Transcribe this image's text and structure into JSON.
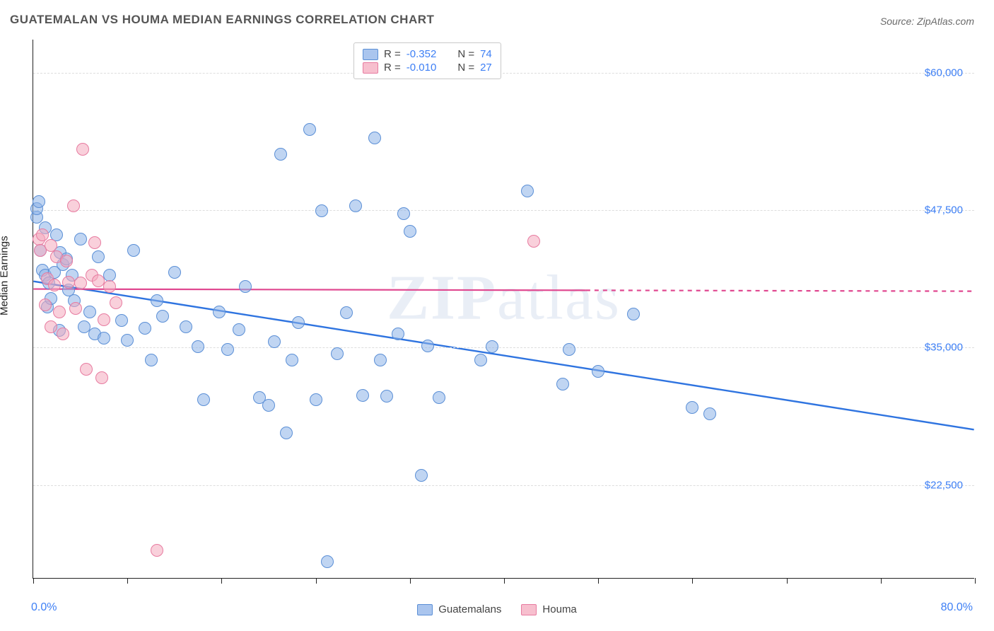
{
  "title": "GUATEMALAN VS HOUMA MEDIAN EARNINGS CORRELATION CHART",
  "source_label": "Source: ZipAtlas.com",
  "ylabel": "Median Earnings",
  "watermark": {
    "prefix": "ZIP",
    "suffix": "atlas"
  },
  "chart": {
    "type": "scatter",
    "background_color": "#ffffff",
    "grid_color": "#dddddd",
    "axis_color": "#222222",
    "tick_label_color": "#3d7ff5",
    "title_fontsize": 17,
    "label_fontsize": 15,
    "marker_radius": 9,
    "marker_opacity": 0.55,
    "xlim": [
      0,
      80
    ],
    "ylim": [
      14000,
      63000
    ],
    "x_tick_positions": [
      0,
      8,
      16,
      24,
      32,
      40,
      48,
      56,
      64,
      72,
      80
    ],
    "x_range_labels": {
      "left": "0.0%",
      "right": "80.0%"
    },
    "y_gridlines": [
      22500,
      35000,
      47500,
      60000
    ],
    "y_tick_labels": [
      "$22,500",
      "$35,000",
      "$47,500",
      "$60,000"
    ],
    "series": [
      {
        "name": "Guatemalans",
        "key": "A",
        "fill_color": "#8db2e8",
        "border_color": "#5b8fd6",
        "correlation": {
          "R": "-0.352",
          "N": "74"
        },
        "trend": {
          "x1": 0,
          "y1": 41000,
          "x2": 80,
          "y2": 27500,
          "stroke": "#2f74e0",
          "stroke_width": 2.4,
          "dash_after_x": null
        },
        "points": [
          [
            0.3,
            46800
          ],
          [
            0.3,
            47600
          ],
          [
            0.5,
            48200
          ],
          [
            0.6,
            43800
          ],
          [
            0.8,
            42000
          ],
          [
            1.0,
            41500
          ],
          [
            1.0,
            45800
          ],
          [
            1.2,
            38600
          ],
          [
            1.3,
            40800
          ],
          [
            1.5,
            39400
          ],
          [
            1.8,
            41800
          ],
          [
            2.0,
            45200
          ],
          [
            2.2,
            36500
          ],
          [
            2.3,
            43600
          ],
          [
            2.5,
            42500
          ],
          [
            2.8,
            43000
          ],
          [
            3.0,
            40200
          ],
          [
            3.3,
            41500
          ],
          [
            3.5,
            39200
          ],
          [
            4.0,
            44800
          ],
          [
            4.3,
            36800
          ],
          [
            4.8,
            38200
          ],
          [
            5.2,
            36200
          ],
          [
            5.5,
            43200
          ],
          [
            6.0,
            35800
          ],
          [
            6.5,
            41500
          ],
          [
            7.5,
            37400
          ],
          [
            8.0,
            35600
          ],
          [
            8.5,
            43800
          ],
          [
            9.5,
            36700
          ],
          [
            10.0,
            33800
          ],
          [
            10.5,
            39200
          ],
          [
            11.0,
            37800
          ],
          [
            12.0,
            41800
          ],
          [
            13.0,
            36800
          ],
          [
            14.0,
            35000
          ],
          [
            14.5,
            30200
          ],
          [
            15.8,
            38200
          ],
          [
            16.5,
            34800
          ],
          [
            17.5,
            36600
          ],
          [
            18.0,
            40500
          ],
          [
            19.2,
            30400
          ],
          [
            20.0,
            29700
          ],
          [
            20.5,
            35500
          ],
          [
            21.0,
            52500
          ],
          [
            21.5,
            27200
          ],
          [
            22.0,
            33800
          ],
          [
            22.5,
            37200
          ],
          [
            23.5,
            54800
          ],
          [
            24.0,
            30200
          ],
          [
            24.5,
            47400
          ],
          [
            25.0,
            15500
          ],
          [
            25.8,
            34400
          ],
          [
            26.6,
            38100
          ],
          [
            27.4,
            47800
          ],
          [
            28.0,
            30600
          ],
          [
            29.0,
            54000
          ],
          [
            29.5,
            33800
          ],
          [
            30.0,
            30500
          ],
          [
            31.0,
            36200
          ],
          [
            31.5,
            47100
          ],
          [
            32.0,
            45500
          ],
          [
            33.0,
            23300
          ],
          [
            33.5,
            35100
          ],
          [
            34.5,
            30400
          ],
          [
            38.0,
            33800
          ],
          [
            39.0,
            35000
          ],
          [
            42.0,
            49200
          ],
          [
            45.0,
            31600
          ],
          [
            45.5,
            34800
          ],
          [
            51.0,
            38000
          ],
          [
            56.0,
            29500
          ],
          [
            57.5,
            28900
          ],
          [
            48.0,
            32800
          ]
        ]
      },
      {
        "name": "Houma",
        "key": "B",
        "fill_color": "#f4a9be",
        "border_color": "#e77ba0",
        "correlation": {
          "R": "-0.010",
          "N": "27"
        },
        "trend": {
          "x1": 0,
          "y1": 40300,
          "x2": 80,
          "y2": 40100,
          "stroke": "#e04890",
          "stroke_width": 2.2,
          "dash_after_x": 47
        },
        "points": [
          [
            0.5,
            44800
          ],
          [
            0.6,
            43800
          ],
          [
            0.8,
            45200
          ],
          [
            1.0,
            38800
          ],
          [
            1.2,
            41200
          ],
          [
            1.5,
            44200
          ],
          [
            1.5,
            36800
          ],
          [
            1.8,
            40600
          ],
          [
            2.0,
            43200
          ],
          [
            2.2,
            38200
          ],
          [
            2.5,
            36200
          ],
          [
            2.8,
            42800
          ],
          [
            3.0,
            40900
          ],
          [
            3.4,
            47800
          ],
          [
            3.6,
            38500
          ],
          [
            4.0,
            40800
          ],
          [
            4.5,
            33000
          ],
          [
            5.0,
            41500
          ],
          [
            5.2,
            44500
          ],
          [
            5.5,
            41000
          ],
          [
            6.0,
            37500
          ],
          [
            6.5,
            40500
          ],
          [
            7.0,
            39000
          ],
          [
            4.2,
            53000
          ],
          [
            5.8,
            32200
          ],
          [
            10.5,
            16500
          ],
          [
            42.5,
            44600
          ]
        ]
      }
    ]
  },
  "bottom_legend": [
    "Guatemalans",
    "Houma"
  ]
}
